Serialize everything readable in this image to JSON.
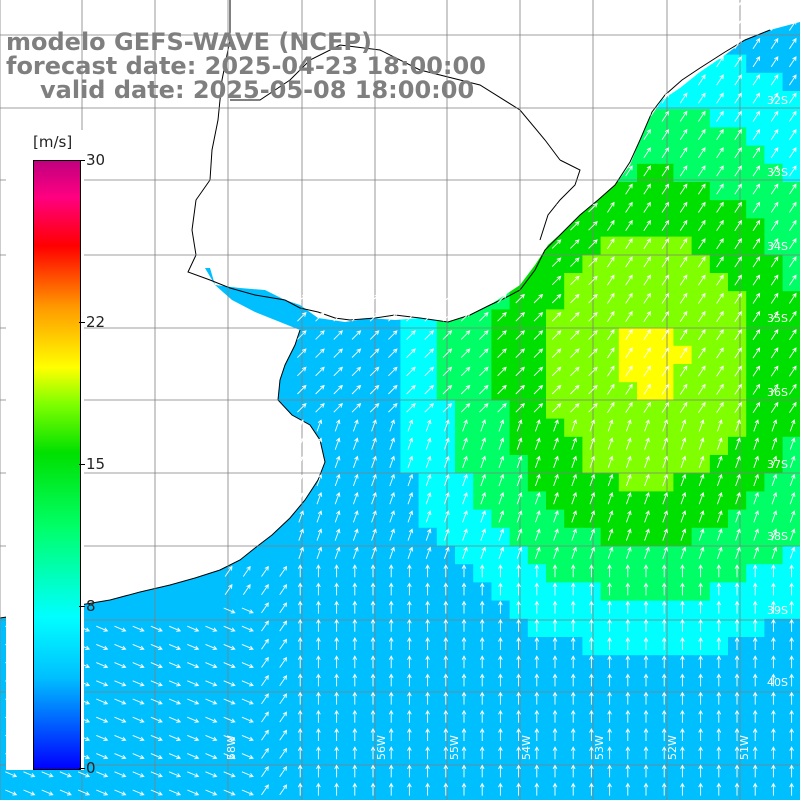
{
  "title": {
    "model": "modelo GEFS-WAVE (NCEP)",
    "forecast_date": "forecast date: 2025-04-23 18:00:00",
    "valid_date": "valid date: 2025-05-08 18:00:00"
  },
  "colorbar": {
    "unit": "[m/s]",
    "ticks": [
      {
        "label": "30",
        "value": 30
      },
      {
        "label": "22",
        "value": 22
      },
      {
        "label": "15",
        "value": 15
      },
      {
        "label": "8",
        "value": 8
      },
      {
        "label": "0",
        "value": 0
      }
    ],
    "colors": [
      "#0000ff",
      "#00bfff",
      "#00ffff",
      "#00ff66",
      "#00e000",
      "#7fff00",
      "#ffff00",
      "#ff9900",
      "#ff0000",
      "#ff0080",
      "#c0007f"
    ]
  },
  "map": {
    "lat_labels": [
      "32S",
      "33S",
      "34S",
      "35S",
      "36S",
      "37S",
      "38S",
      "39S",
      "40S"
    ],
    "lon_labels": [
      "58W",
      "56W",
      "55W",
      "54W",
      "53W",
      "52W",
      "51W"
    ],
    "land_color": "#ffffff",
    "grid_color": "#7f7f7f",
    "coast_color": "#000000"
  }
}
